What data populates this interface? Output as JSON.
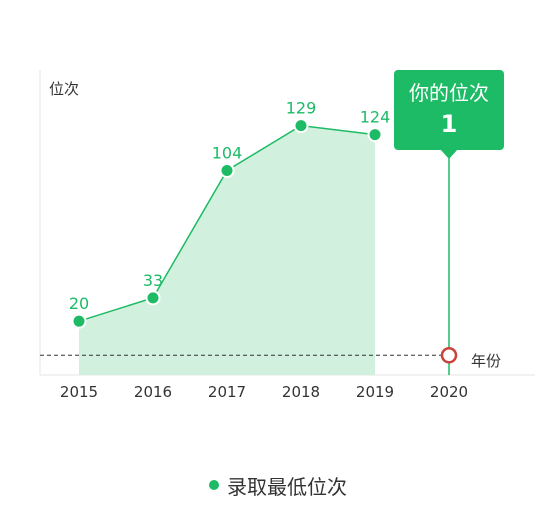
{
  "colors": {
    "accent": "#1dbb66",
    "area": "#d2f0de",
    "marker_highlight": "#c9423b",
    "axis_text": "#333333",
    "grid_line": "#e6e6e6"
  },
  "legend": {
    "label": "录取最低位次",
    "color": "#1dbb66"
  },
  "callout": {
    "title": "你的位次",
    "value": "1"
  },
  "chart_data": {
    "type": "line",
    "title": "",
    "xlabel": "年份",
    "ylabel": "位次",
    "x": [
      "2015",
      "2016",
      "2017",
      "2018",
      "2019",
      "2020"
    ],
    "series": [
      {
        "name": "录取最低位次",
        "x": [
          "2015",
          "2016",
          "2017",
          "2018",
          "2019"
        ],
        "values": [
          20,
          33,
          104,
          129,
          124
        ],
        "data_labels": [
          "20",
          "33",
          "104",
          "129",
          "124"
        ]
      }
    ],
    "highlight": {
      "x": "2020",
      "value": 1
    },
    "ylim": [
      -10,
      160
    ],
    "grid": false,
    "legend_position": "bottom-center",
    "area_fill": true
  }
}
